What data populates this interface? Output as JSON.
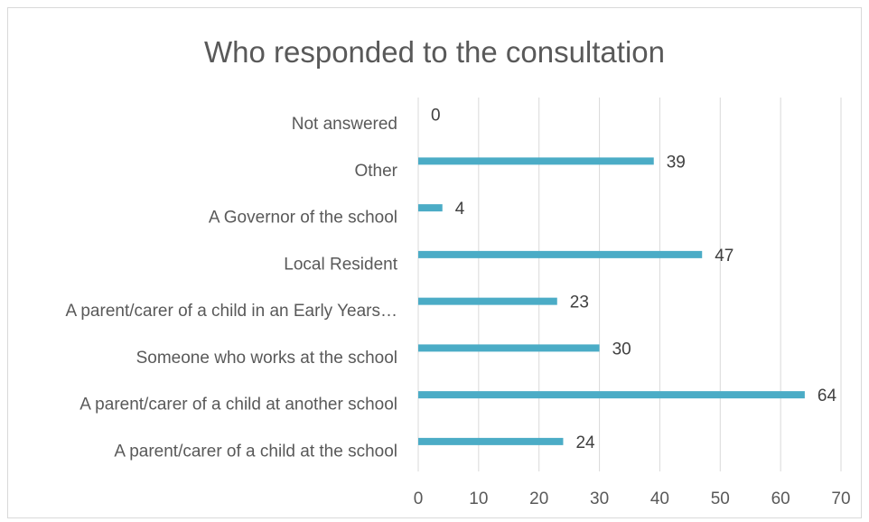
{
  "chart_data": {
    "type": "bar",
    "orientation": "horizontal",
    "title": "Who responded to the consultation",
    "categories": [
      "Not answered",
      "Other",
      "A Governor of the school",
      "Local Resident",
      "A parent/carer of a child in an Early Years…",
      "Someone who works at the school",
      "A parent/carer of a child at another school",
      "A parent/carer of a child at the school"
    ],
    "values": [
      0,
      39,
      4,
      47,
      23,
      30,
      64,
      24
    ],
    "xlim": [
      0,
      70
    ],
    "xticks": [
      "0",
      "10",
      "20",
      "30",
      "40",
      "50",
      "60",
      "70"
    ],
    "grid": true,
    "bar_color": "#4bacc6",
    "data_labels": true
  }
}
